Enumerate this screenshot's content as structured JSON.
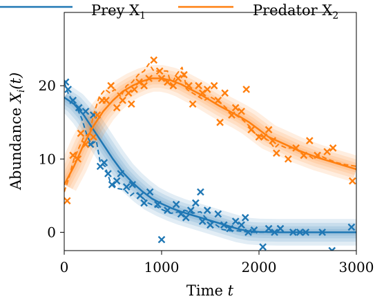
{
  "chart_data": {
    "type": "line",
    "xlabel_main": "Time",
    "xlabel_var": "t",
    "ylabel_main": "Abundance",
    "ylabel_var": "X",
    "ylabel_sub": "i",
    "ylabel_arg": "(t)",
    "xlim": [
      0,
      3000
    ],
    "ylim": [
      -2.5,
      30
    ],
    "xticks": [
      0,
      1000,
      2000,
      3000
    ],
    "yticks": [
      0,
      10,
      20
    ],
    "grid": false,
    "legend_placement": "top",
    "series": [
      {
        "name_main": "Prey X",
        "name_sub": "1",
        "color": "#1f77b4",
        "fit": [
          [
            0,
            18.4
          ],
          [
            100,
            17.5
          ],
          [
            200,
            16.0
          ],
          [
            300,
            14.0
          ],
          [
            400,
            12.0
          ],
          [
            500,
            10.0
          ],
          [
            600,
            8.2
          ],
          [
            700,
            6.8
          ],
          [
            800,
            5.6
          ],
          [
            900,
            4.6
          ],
          [
            1000,
            3.9
          ],
          [
            1100,
            3.3
          ],
          [
            1200,
            2.8
          ],
          [
            1300,
            2.4
          ],
          [
            1400,
            2.0
          ],
          [
            1500,
            1.6
          ],
          [
            1600,
            1.2
          ],
          [
            1700,
            0.8
          ],
          [
            1800,
            0.4
          ],
          [
            1900,
            0.15
          ],
          [
            2000,
            0.05
          ],
          [
            2200,
            0.0
          ],
          [
            2500,
            0.0
          ],
          [
            3000,
            0.0
          ]
        ],
        "trajectory": [
          [
            0,
            20.5
          ],
          [
            40,
            19.0
          ],
          [
            80,
            18.0
          ],
          [
            130,
            17.0
          ],
          [
            180,
            15.5
          ],
          [
            240,
            13.0
          ],
          [
            280,
            12.0
          ],
          [
            330,
            12.5
          ],
          [
            370,
            9.5
          ],
          [
            420,
            9.0
          ],
          [
            470,
            7.0
          ],
          [
            540,
            6.0
          ],
          [
            620,
            5.8
          ],
          [
            680,
            5.0
          ],
          [
            730,
            5.5
          ],
          [
            800,
            4.8
          ],
          [
            860,
            4.0
          ],
          [
            950,
            3.5
          ],
          [
            1020,
            3.0
          ],
          [
            1100,
            2.6
          ],
          [
            1180,
            2.8
          ],
          [
            1240,
            3.0
          ],
          [
            1320,
            2.6
          ],
          [
            1400,
            2.8
          ],
          [
            1450,
            2.0
          ],
          [
            1500,
            1.5
          ],
          [
            1560,
            1.0
          ],
          [
            1620,
            0.4
          ],
          [
            1700,
            0.2
          ],
          [
            1780,
            0.2
          ],
          [
            1850,
            0.1
          ],
          [
            1900,
            0.0
          ],
          [
            2000,
            0.0
          ],
          [
            2200,
            0.0
          ],
          [
            2500,
            0.0
          ],
          [
            3000,
            0.0
          ]
        ],
        "observations": [
          [
            15,
            20.5
          ],
          [
            40,
            19.5
          ],
          [
            90,
            18.0
          ],
          [
            150,
            17.0
          ],
          [
            220,
            16.5
          ],
          [
            270,
            12.0
          ],
          [
            300,
            16.0
          ],
          [
            370,
            9.0
          ],
          [
            410,
            9.5
          ],
          [
            450,
            8.0
          ],
          [
            490,
            6.5
          ],
          [
            540,
            7.0
          ],
          [
            580,
            8.0
          ],
          [
            640,
            6.2
          ],
          [
            700,
            6.5
          ],
          [
            780,
            5.0
          ],
          [
            820,
            4.0
          ],
          [
            880,
            5.5
          ],
          [
            960,
            3.8
          ],
          [
            1000,
            -1.0
          ],
          [
            1060,
            3.0
          ],
          [
            1150,
            3.8
          ],
          [
            1200,
            2.5
          ],
          [
            1250,
            2.0
          ],
          [
            1300,
            3.0
          ],
          [
            1350,
            4.0
          ],
          [
            1400,
            5.5
          ],
          [
            1420,
            1.5
          ],
          [
            1470,
            3.0
          ],
          [
            1500,
            1.0
          ],
          [
            1580,
            2.5
          ],
          [
            1640,
            1.0
          ],
          [
            1700,
            0.5
          ],
          [
            1760,
            1.5
          ],
          [
            1820,
            1.0
          ],
          [
            1860,
            2.0
          ],
          [
            1890,
            0.0
          ],
          [
            1950,
            0.3
          ],
          [
            2040,
            -2.0
          ],
          [
            2100,
            0.5
          ],
          [
            2160,
            0.0
          ],
          [
            2220,
            0.5
          ],
          [
            2350,
            0.0
          ],
          [
            2420,
            0.0
          ],
          [
            2480,
            0.0
          ],
          [
            2650,
            0.0
          ],
          [
            2750,
            -2.5
          ],
          [
            2950,
            0.7
          ]
        ]
      },
      {
        "name_main": "Predator X",
        "name_sub": "2",
        "color": "#ff7f0e",
        "fit": [
          [
            0,
            6.5
          ],
          [
            100,
            9.0
          ],
          [
            200,
            12.0
          ],
          [
            300,
            14.5
          ],
          [
            400,
            16.5
          ],
          [
            500,
            18.0
          ],
          [
            600,
            19.2
          ],
          [
            700,
            20.0
          ],
          [
            800,
            20.6
          ],
          [
            900,
            21.0
          ],
          [
            1000,
            21.0
          ],
          [
            1100,
            20.7
          ],
          [
            1200,
            20.2
          ],
          [
            1300,
            19.5
          ],
          [
            1400,
            18.8
          ],
          [
            1500,
            18.0
          ],
          [
            1600,
            17.2
          ],
          [
            1700,
            16.5
          ],
          [
            1800,
            15.8
          ],
          [
            1900,
            15.0
          ],
          [
            2000,
            14.0
          ],
          [
            2100,
            13.0
          ],
          [
            2200,
            12.4
          ],
          [
            2300,
            11.8
          ],
          [
            2400,
            11.2
          ],
          [
            2500,
            10.7
          ],
          [
            2600,
            10.2
          ],
          [
            2700,
            9.8
          ],
          [
            2800,
            9.4
          ],
          [
            2900,
            9.0
          ],
          [
            3000,
            8.6
          ]
        ],
        "trajectory": [
          [
            0,
            5.5
          ],
          [
            50,
            7.5
          ],
          [
            100,
            10.0
          ],
          [
            150,
            11.5
          ],
          [
            200,
            13.0
          ],
          [
            260,
            13.5
          ],
          [
            300,
            16.0
          ],
          [
            360,
            18.5
          ],
          [
            420,
            19.5
          ],
          [
            470,
            19.0
          ],
          [
            520,
            19.5
          ],
          [
            580,
            18.5
          ],
          [
            640,
            20.0
          ],
          [
            700,
            20.5
          ],
          [
            760,
            21.5
          ],
          [
            820,
            22.0
          ],
          [
            870,
            23.0
          ],
          [
            920,
            22.0
          ],
          [
            980,
            22.0
          ],
          [
            1060,
            22.0
          ],
          [
            1100,
            20.0
          ],
          [
            1150,
            21.5
          ],
          [
            1210,
            22.5
          ],
          [
            1260,
            19.5
          ],
          [
            1320,
            19.0
          ],
          [
            1380,
            18.5
          ],
          [
            1440,
            18.0
          ],
          [
            1500,
            18.5
          ],
          [
            1560,
            18.0
          ],
          [
            1620,
            17.5
          ],
          [
            1700,
            16.5
          ],
          [
            1760,
            16.0
          ],
          [
            1820,
            15.5
          ],
          [
            1900,
            14.5
          ],
          [
            1960,
            13.5
          ],
          [
            2040,
            13.0
          ],
          [
            2100,
            12.5
          ],
          [
            2160,
            11.5
          ],
          [
            2200,
            12.0
          ],
          [
            2280,
            11.5
          ],
          [
            2350,
            11.5
          ],
          [
            2420,
            11.0
          ],
          [
            2480,
            10.8
          ],
          [
            2560,
            10.0
          ],
          [
            2620,
            10.5
          ],
          [
            2700,
            10.0
          ],
          [
            2800,
            9.5
          ],
          [
            2900,
            9.2
          ],
          [
            3000,
            9.0
          ]
        ],
        "observations": [
          [
            30,
            4.3
          ],
          [
            90,
            10.5
          ],
          [
            140,
            10.0
          ],
          [
            170,
            13.5
          ],
          [
            220,
            12.0
          ],
          [
            300,
            13.0
          ],
          [
            340,
            16.0
          ],
          [
            390,
            18.0
          ],
          [
            430,
            18.0
          ],
          [
            480,
            20.0
          ],
          [
            540,
            17.0
          ],
          [
            600,
            18.0
          ],
          [
            660,
            19.0
          ],
          [
            690,
            17.5
          ],
          [
            720,
            19.5
          ],
          [
            770,
            20.5
          ],
          [
            820,
            20.0
          ],
          [
            870,
            21.0
          ],
          [
            920,
            23.5
          ],
          [
            980,
            22.0
          ],
          [
            1000,
            21.0
          ],
          [
            1060,
            20.5
          ],
          [
            1120,
            20.0
          ],
          [
            1170,
            21.0
          ],
          [
            1230,
            21.5
          ],
          [
            1280,
            20.0
          ],
          [
            1320,
            17.5
          ],
          [
            1380,
            20.0
          ],
          [
            1420,
            19.0
          ],
          [
            1470,
            19.5
          ],
          [
            1540,
            20.0
          ],
          [
            1580,
            18.0
          ],
          [
            1600,
            15.0
          ],
          [
            1650,
            19.0
          ],
          [
            1720,
            16.0
          ],
          [
            1760,
            17.0
          ],
          [
            1820,
            16.5
          ],
          [
            1870,
            19.5
          ],
          [
            1920,
            14.0
          ],
          [
            2000,
            13.0
          ],
          [
            2050,
            13.0
          ],
          [
            2100,
            14.0
          ],
          [
            2140,
            12.5
          ],
          [
            2180,
            10.8
          ],
          [
            2300,
            10.0
          ],
          [
            2380,
            11.5
          ],
          [
            2460,
            10.5
          ],
          [
            2520,
            12.5
          ],
          [
            2600,
            10.5
          ],
          [
            2700,
            11.0
          ],
          [
            2760,
            11.5
          ],
          [
            2960,
            7.0
          ]
        ]
      }
    ]
  }
}
